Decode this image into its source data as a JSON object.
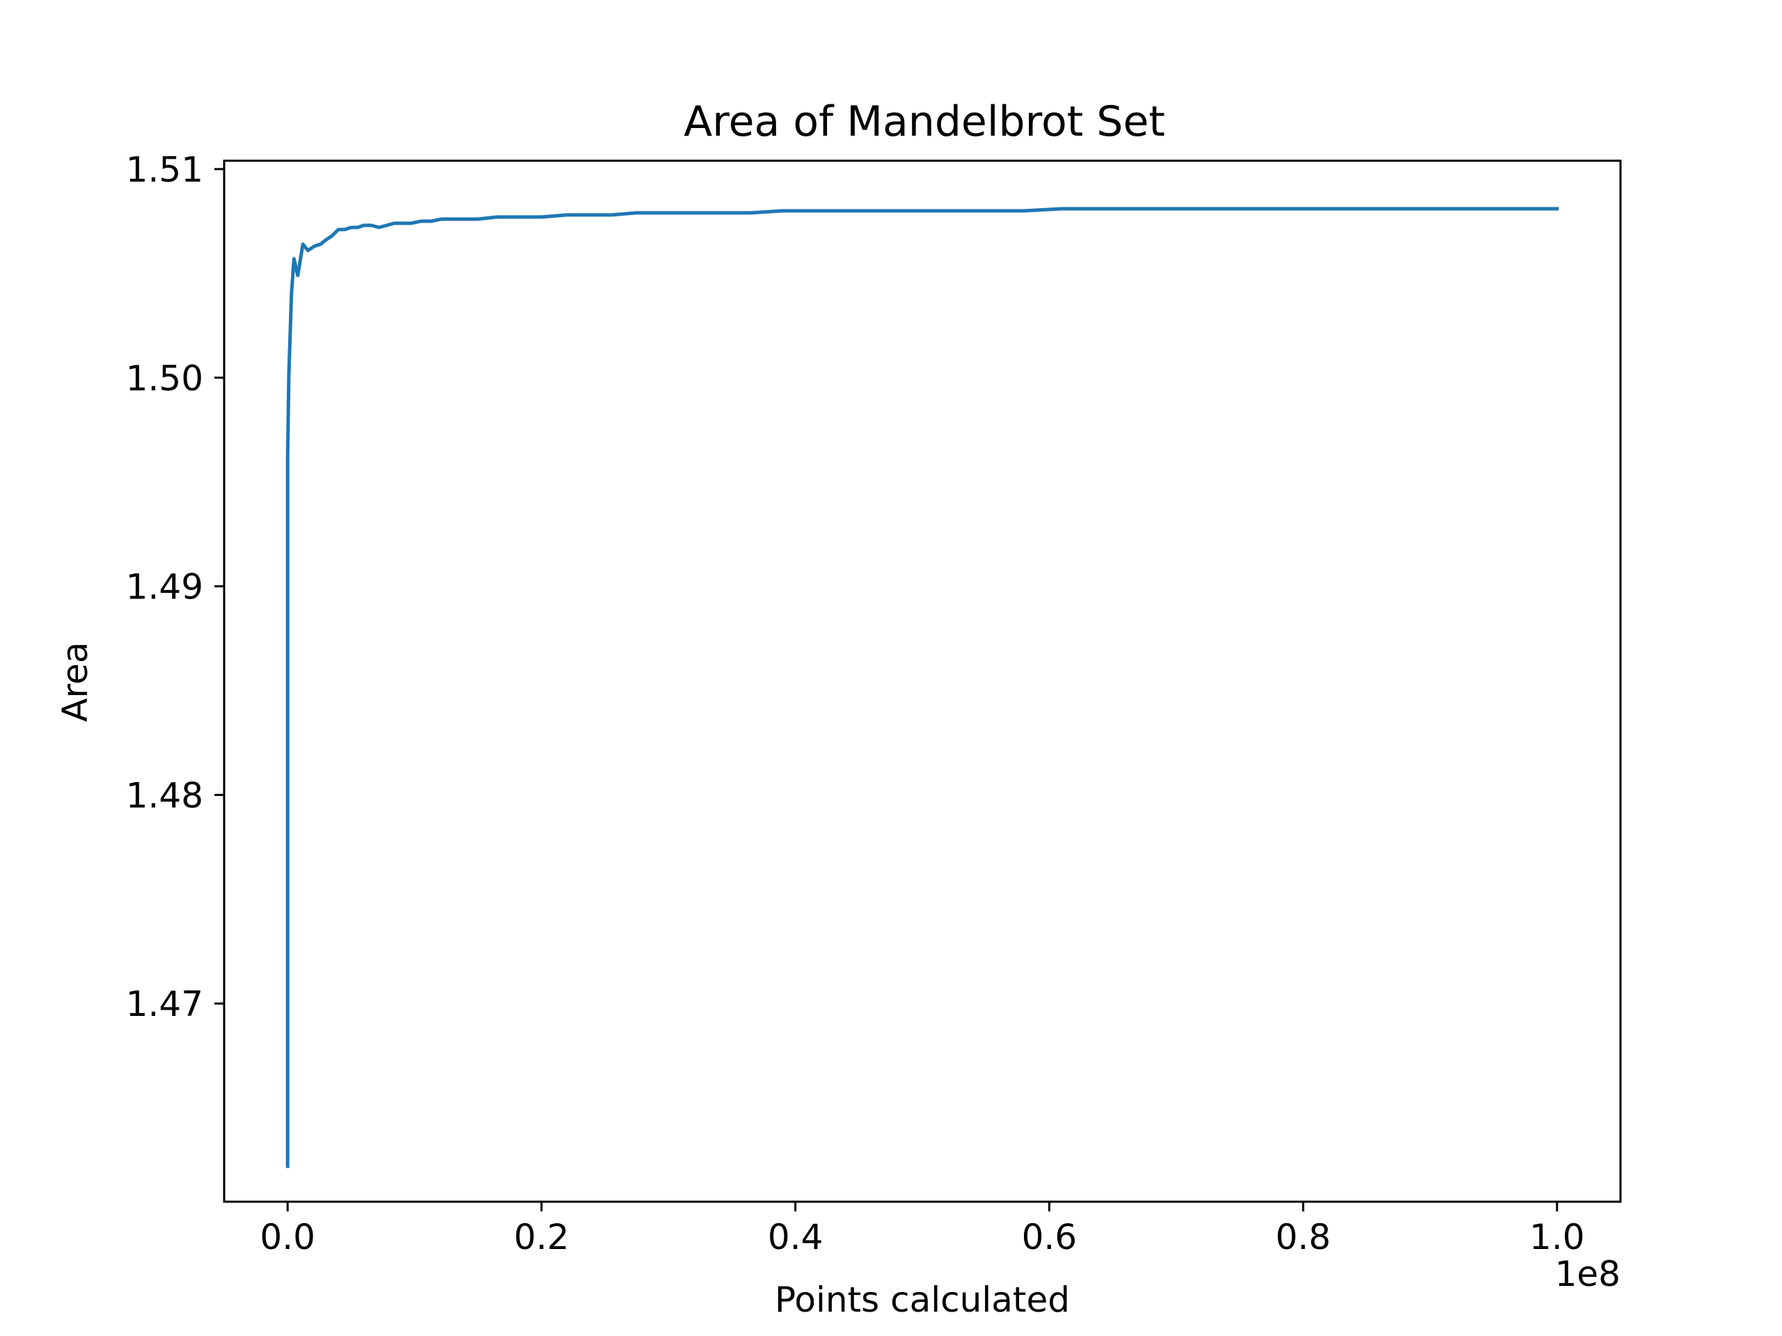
{
  "chart_data": {
    "type": "line",
    "title": "Area of Mandelbrot Set",
    "xlabel": "Points calculated",
    "ylabel": "Area",
    "x_offset_label": "1e8",
    "xlim": [
      -0.05,
      1.05
    ],
    "ylim": [
      1.4605,
      1.5104
    ],
    "xticks": [
      {
        "value": 0.0,
        "label": "0.0"
      },
      {
        "value": 0.2,
        "label": "0.2"
      },
      {
        "value": 0.4,
        "label": "0.4"
      },
      {
        "value": 0.6,
        "label": "0.6"
      },
      {
        "value": 0.8,
        "label": "0.8"
      },
      {
        "value": 1.0,
        "label": "1.0"
      }
    ],
    "yticks": [
      {
        "value": 1.47,
        "label": "1.47"
      },
      {
        "value": 1.48,
        "label": "1.48"
      },
      {
        "value": 1.49,
        "label": "1.49"
      },
      {
        "value": 1.5,
        "label": "1.50"
      },
      {
        "value": 1.51,
        "label": "1.51"
      }
    ],
    "grid": false,
    "line_color": "#1f77b4",
    "series": [
      {
        "x": [
          0.0,
          0.0,
          0.001,
          0.003,
          0.005,
          0.008,
          0.012,
          0.016,
          0.021,
          0.026,
          0.03,
          0.035,
          0.04,
          0.045,
          0.05,
          0.055,
          0.06,
          0.066,
          0.072,
          0.078,
          0.084,
          0.09,
          0.097,
          0.105,
          0.113,
          0.121,
          0.13,
          0.14,
          0.15,
          0.165,
          0.18,
          0.2,
          0.22,
          0.235,
          0.255,
          0.275,
          0.295,
          0.32,
          0.345,
          0.365,
          0.39,
          0.415,
          0.44,
          0.465,
          0.49,
          0.52,
          0.55,
          0.58,
          0.61,
          0.64,
          0.67,
          0.7,
          0.73,
          0.76,
          0.79,
          0.82,
          0.85,
          0.88,
          0.92,
          0.96,
          1.0
        ],
        "y": [
          1.4622,
          1.4962,
          1.5002,
          1.504,
          1.5057,
          1.5049,
          1.5064,
          1.5061,
          1.5063,
          1.5064,
          1.5066,
          1.5068,
          1.5071,
          1.5071,
          1.5072,
          1.5072,
          1.5073,
          1.5073,
          1.5072,
          1.5073,
          1.5074,
          1.5074,
          1.5074,
          1.5075,
          1.5075,
          1.5076,
          1.5076,
          1.5076,
          1.5076,
          1.5077,
          1.5077,
          1.5077,
          1.5078,
          1.5078,
          1.5078,
          1.5079,
          1.5079,
          1.5079,
          1.5079,
          1.5079,
          1.508,
          1.508,
          1.508,
          1.508,
          1.508,
          1.508,
          1.508,
          1.508,
          1.5081,
          1.5081,
          1.5081,
          1.5081,
          1.5081,
          1.5081,
          1.5081,
          1.5081,
          1.5081,
          1.5081,
          1.5081,
          1.5081,
          1.5081
        ]
      }
    ]
  }
}
